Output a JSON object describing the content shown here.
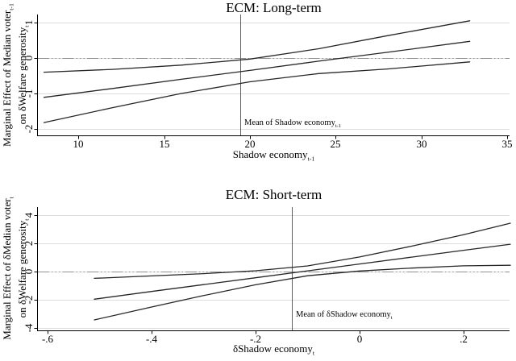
{
  "colors": {
    "curve": "#262626",
    "grid": "#dcdcdc",
    "zero_line": "#8f8f8f",
    "mean_line": "#606060",
    "axis": "#000000",
    "text": "#000000",
    "background": "#ffffff"
  },
  "chart_data": [
    {
      "type": "line",
      "title": "ECM: Long-term",
      "xlabel": {
        "text": "Shadow economy",
        "sub": "t-1"
      },
      "ylabel": [
        {
          "text": "Marginal Effect of Median voter",
          "sub": "t-1"
        },
        {
          "text": "on δWelfare generosity",
          "sub": "t"
        }
      ],
      "xlim": [
        7.65,
        35.12
      ],
      "ylim": [
        -2.182,
        1.227
      ],
      "grid": true,
      "legend": "none",
      "xticks": [
        {
          "v": 10,
          "label": "10"
        },
        {
          "v": 15,
          "label": "15"
        },
        {
          "v": 20,
          "label": "20"
        },
        {
          "v": 25,
          "label": "25"
        },
        {
          "v": 30,
          "label": "30"
        },
        {
          "v": 35,
          "label": "35"
        }
      ],
      "yticks": [
        {
          "v": 1,
          "label": "1"
        },
        {
          "v": 0,
          "label": "0"
        },
        {
          "v": -1,
          "label": "-1"
        },
        {
          "v": -2,
          "label": "-2"
        }
      ],
      "zero_reference_line": 0,
      "mean_line": {
        "x": 19.45,
        "label": {
          "text": "Mean of Shadow economy",
          "sub": "t-1"
        }
      },
      "series": [
        {
          "name": "upper-confidence-bound",
          "x": [
            8,
            12,
            16,
            20,
            24,
            28,
            32.8
          ],
          "y": [
            -0.4,
            -0.32,
            -0.2,
            -0.03,
            0.26,
            0.63,
            1.05
          ]
        },
        {
          "name": "marginal-effect",
          "x": [
            8,
            12,
            16,
            20,
            24,
            28,
            32.8
          ],
          "y": [
            -1.11,
            -0.86,
            -0.6,
            -0.35,
            -0.09,
            0.16,
            0.47
          ]
        },
        {
          "name": "lower-confidence-bound",
          "x": [
            8,
            12,
            16,
            20,
            24,
            28,
            32.8
          ],
          "y": [
            -1.82,
            -1.4,
            -1.0,
            -0.67,
            -0.44,
            -0.31,
            -0.11
          ]
        }
      ]
    },
    {
      "type": "line",
      "title": "ECM: Short-term",
      "xlabel": {
        "text": "δShadow economy",
        "sub": "t"
      },
      "ylabel": [
        {
          "text": "Marginal Effect of δMedian voter",
          "sub": "t"
        },
        {
          "text": "on δWelfare generosity",
          "sub": "t"
        }
      ],
      "xlim": [
        -0.6186,
        0.2884
      ],
      "ylim": [
        -4.195,
        4.598
      ],
      "grid": true,
      "legend": "none",
      "xticks": [
        {
          "v": -0.6,
          "label": "-.6"
        },
        {
          "v": -0.4,
          "label": "-.4"
        },
        {
          "v": -0.2,
          "label": "-.2"
        },
        {
          "v": 0,
          "label": "0"
        },
        {
          "v": 0.2,
          "label": ".2"
        }
      ],
      "yticks": [
        {
          "v": 4,
          "label": "4"
        },
        {
          "v": 2,
          "label": "2"
        },
        {
          "v": 0,
          "label": "0"
        },
        {
          "v": -2,
          "label": "-2"
        },
        {
          "v": -4,
          "label": "-4"
        }
      ],
      "zero_reference_line": 0,
      "mean_line": {
        "x": -0.13,
        "label": {
          "text": "Mean of δShadow economy",
          "sub": "t"
        }
      },
      "series": [
        {
          "name": "upper-confidence-bound",
          "x": [
            -0.51,
            -0.4,
            -0.3,
            -0.2,
            -0.1,
            0,
            0.1,
            0.2,
            0.29
          ],
          "y": [
            -0.48,
            -0.31,
            -0.15,
            0.06,
            0.4,
            1.04,
            1.81,
            2.63,
            3.45
          ]
        },
        {
          "name": "marginal-effect",
          "x": [
            -0.51,
            -0.4,
            -0.3,
            -0.2,
            -0.1,
            0,
            0.1,
            0.2,
            0.29
          ],
          "y": [
            -1.97,
            -1.42,
            -0.93,
            -0.44,
            0.05,
            0.54,
            1.03,
            1.52,
            1.95
          ]
        },
        {
          "name": "lower-confidence-bound",
          "x": [
            -0.51,
            -0.4,
            -0.3,
            -0.2,
            -0.1,
            0,
            0.1,
            0.2,
            0.29
          ],
          "y": [
            -3.45,
            -2.53,
            -1.71,
            -0.94,
            -0.3,
            0.04,
            0.25,
            0.41,
            0.45
          ]
        }
      ]
    }
  ]
}
